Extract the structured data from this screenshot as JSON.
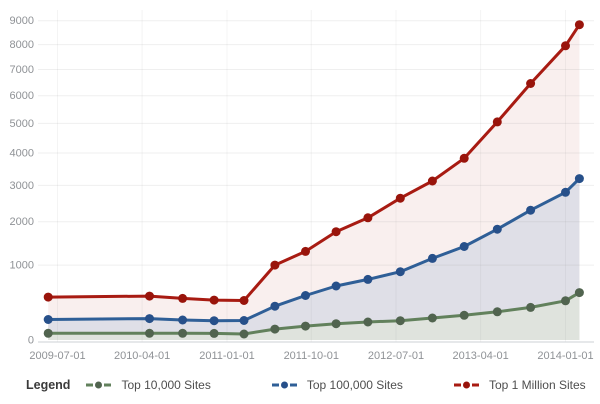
{
  "chart_data": {
    "type": "line",
    "title": "",
    "x": [
      "2009-06-01",
      "2010-04-25",
      "2010-08-10",
      "2010-11-20",
      "2011-02-25",
      "2011-06-05",
      "2011-09-12",
      "2011-12-20",
      "2012-04-01",
      "2012-07-15",
      "2012-10-27",
      "2013-02-07",
      "2013-05-25",
      "2013-09-10",
      "2014-01-01",
      "2014-02-15"
    ],
    "series": [
      {
        "name": "Top 10,000 Sites",
        "color": "#62815c",
        "dot_color": "#51644f",
        "fill": "#dfe3dd",
        "values": [
          26,
          26,
          26,
          25,
          22,
          54,
          78,
          99,
          115,
          128,
          156,
          186,
          228,
          284,
          375,
          500
        ]
      },
      {
        "name": "Top 100,000 Sites",
        "color": "#2f5f97",
        "dot_color": "#27508a",
        "fill": "#dfdfe7",
        "values": [
          140,
          150,
          135,
          128,
          130,
          300,
          455,
          610,
          725,
          870,
          1140,
          1400,
          1810,
          2300,
          2800,
          3200
        ]
      },
      {
        "name": "Top 1 Million Sites",
        "color": "#a81b12",
        "dot_color": "#99140b",
        "fill": "#f9efee",
        "values": [
          430,
          445,
          410,
          385,
          380,
          1000,
          1290,
          1750,
          2100,
          2630,
          3130,
          3830,
          5050,
          6460,
          7950,
          8830
        ]
      }
    ],
    "x_tick_labels": [
      "2009-07-01",
      "2010-04-01",
      "2011-01-01",
      "2011-10-01",
      "2012-07-01",
      "2013-04-01",
      "2014-01-01"
    ],
    "y_ticks": [
      0,
      1000,
      2000,
      3000,
      4000,
      5000,
      6000,
      7000,
      8000,
      9000
    ],
    "y_max": 9000,
    "ylim": [
      0,
      9000
    ],
    "y_scale": "power-0.66",
    "xlabel": "",
    "ylabel": "",
    "grid": true,
    "legend_position": "bottom"
  },
  "legend": {
    "title": "Legend"
  },
  "colors": {
    "background": "#ffffff",
    "grid_horizontal": "rgba(130,130,130,0.13)",
    "grid_vertical": "rgba(130,130,130,0.09)",
    "axis_line": "#cdd0d4",
    "tick_text": "#8f9296"
  }
}
